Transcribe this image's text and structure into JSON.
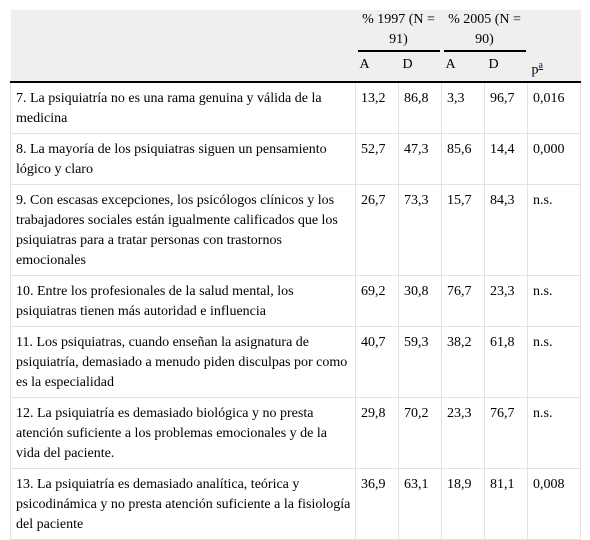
{
  "table": {
    "groups": [
      "% 1997 (N = 91)",
      "% 2005 (N = 90)"
    ],
    "columns": [
      "A",
      "D",
      "A",
      "D",
      "p"
    ],
    "footnote_mark": "a",
    "rows": [
      [
        "7. La psiquiatría no es una rama genuina y válida de la medicina",
        "13,2",
        "86,8",
        "3,3",
        "96,7",
        "0,016"
      ],
      [
        "8. La mayoría de los psiquiatras siguen un pensamiento lógico y claro",
        "52,7",
        "47,3",
        "85,6",
        "14,4",
        "0,000"
      ],
      [
        "9. Con escasas excepciones, los psicólogos clínicos y los trabajadores sociales están igualmente calificados que los psiquiatras para a tratar personas con trastornos emocionales",
        "26,7",
        "73,3",
        "15,7",
        "84,3",
        "n.s."
      ],
      [
        "10. Entre los profesionales de la salud mental, los psiquiatras tienen más autoridad e influencia",
        "69,2",
        "30,8",
        "76,7",
        "23,3",
        "n.s."
      ],
      [
        "11. Los psiquiatras, cuando enseñan la asignatura de psiquiatría, demasiado a menudo piden disculpas por como es la especialidad",
        "40,7",
        "59,3",
        "38,2",
        "61,8",
        "n.s."
      ],
      [
        "12. La psiquiatría es demasiado biológica y no presta atención suficiente a los problemas emocionales y de la vida del paciente.",
        "29,8",
        "70,2",
        "23,3",
        "76,7",
        "n.s."
      ],
      [
        "13. La psiquiatría es demasiado analítica, teórica y psicodinámica y no presta atención suficiente a la fisiología del paciente",
        "36,9",
        "63,1",
        "18,9",
        "81,1",
        "0,008"
      ]
    ]
  }
}
